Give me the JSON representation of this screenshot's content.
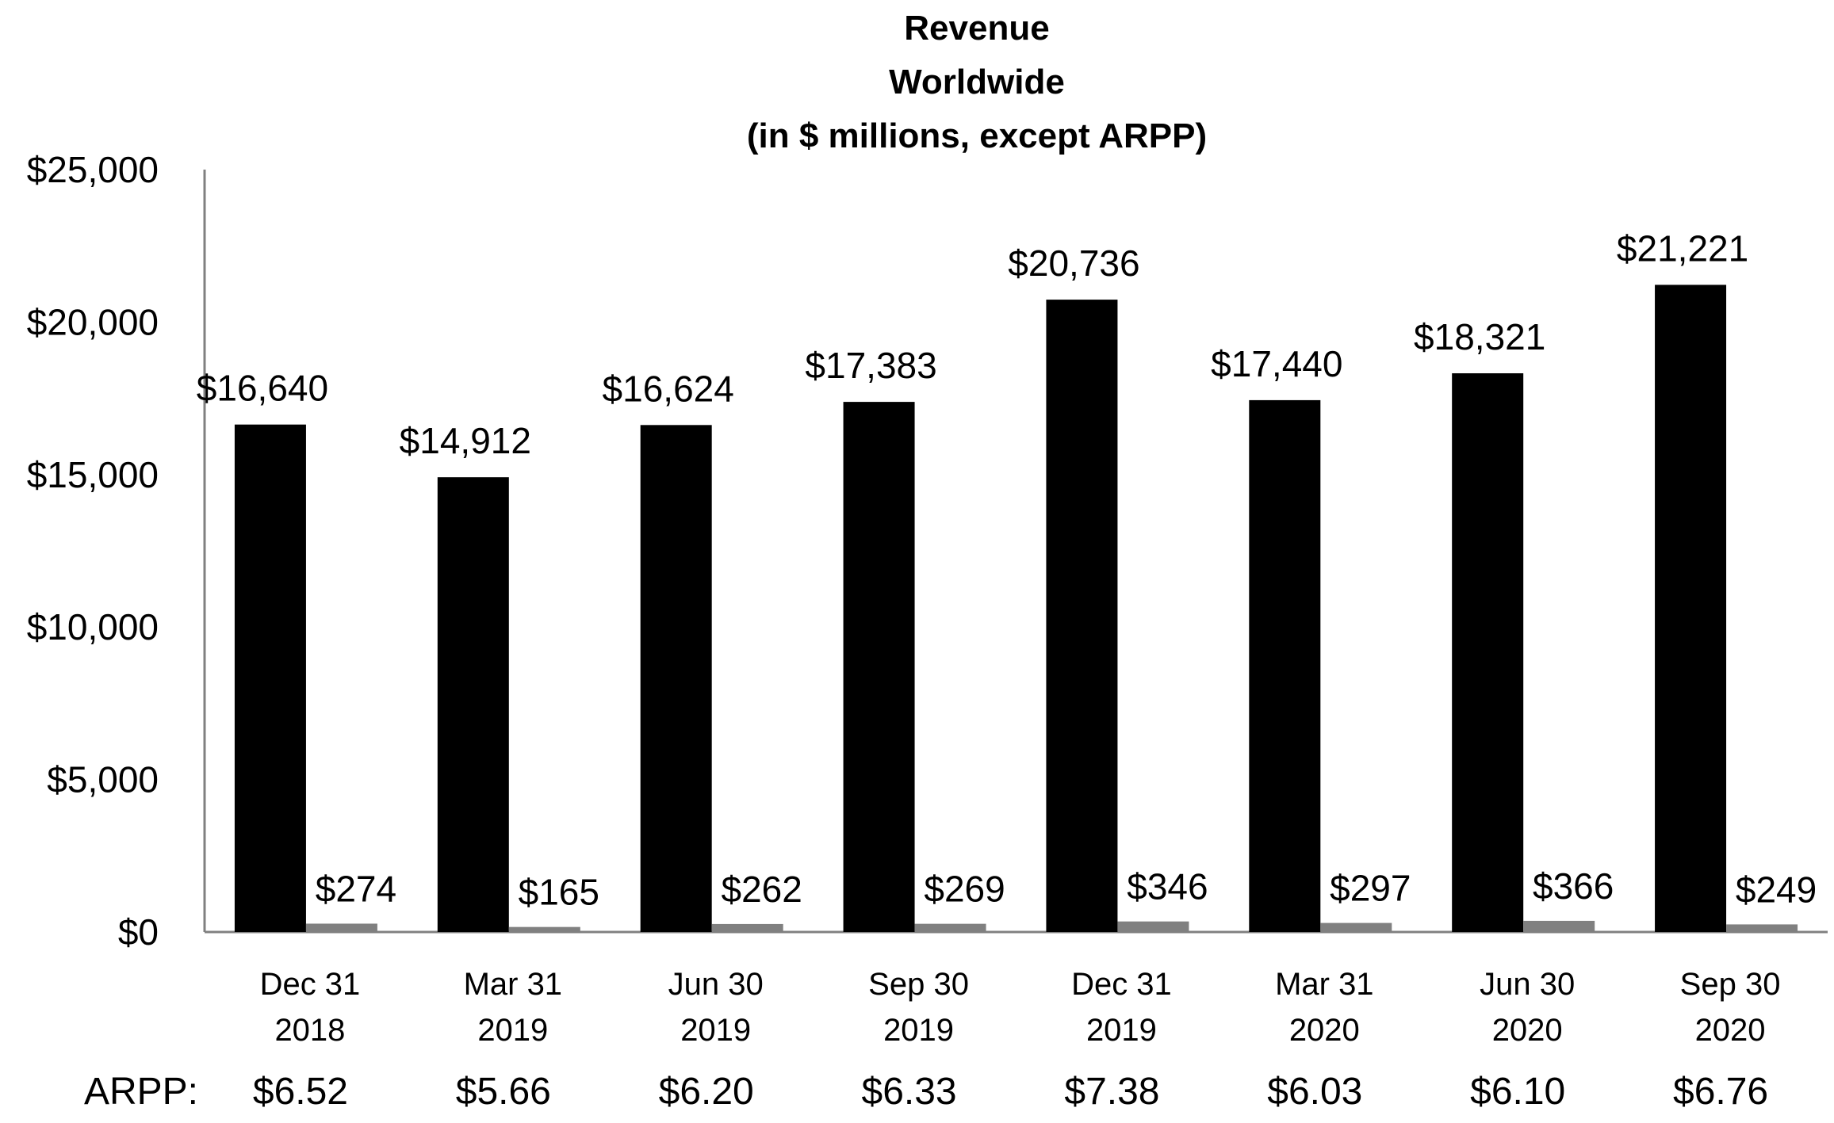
{
  "chart_data": {
    "type": "bar",
    "title": [
      "Revenue",
      "Worldwide",
      "(in $ millions, except ARPP)"
    ],
    "categories": [
      [
        "Dec 31",
        "2018"
      ],
      [
        "Mar 31",
        "2019"
      ],
      [
        "Jun 30",
        "2019"
      ],
      [
        "Sep 30",
        "2019"
      ],
      [
        "Dec 31",
        "2019"
      ],
      [
        "Mar 31",
        "2020"
      ],
      [
        "Jun 30",
        "2020"
      ],
      [
        "Sep 30",
        "2020"
      ]
    ],
    "series": [
      {
        "color": "#000000",
        "values": [
          16640,
          14912,
          16624,
          17383,
          20736,
          17440,
          18321,
          21221
        ],
        "labels": [
          "$16,640",
          "$14,912",
          "$16,624",
          "$17,383",
          "$20,736",
          "$17,440",
          "$18,321",
          "$21,221"
        ]
      },
      {
        "color": "#808080",
        "values": [
          274,
          165,
          262,
          269,
          346,
          297,
          366,
          249
        ],
        "labels": [
          "$274",
          "$165",
          "$262",
          "$269",
          "$346",
          "$297",
          "$366",
          "$249"
        ]
      }
    ],
    "ylim": [
      0,
      25000
    ],
    "yticks": [
      0,
      5000,
      10000,
      15000,
      20000,
      25000
    ],
    "ytick_labels": [
      "$0",
      "$5,000",
      "$10,000",
      "$15,000",
      "$20,000",
      "$25,000"
    ],
    "xlabel": "",
    "ylabel": "",
    "grid": false,
    "arpp": {
      "prefix": "ARPP:",
      "values": [
        "$6.52",
        "$5.66",
        "$6.20",
        "$6.33",
        "$7.38",
        "$6.03",
        "$6.10",
        "$6.76"
      ]
    }
  }
}
